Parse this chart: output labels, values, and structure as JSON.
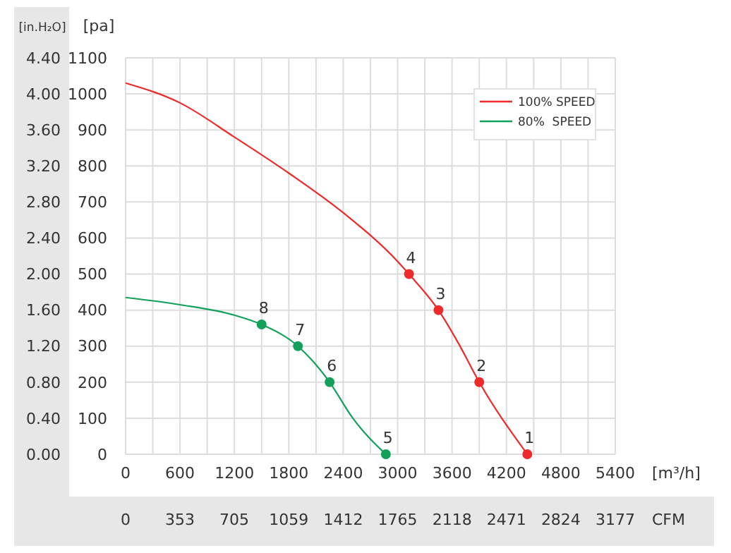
{
  "chart_data": {
    "type": "line",
    "xlabel": "[m³/h]",
    "ylabel": "[pa]",
    "y2label": "[in.H₂O]",
    "x2label": "CFM",
    "xlim": [
      0,
      5400
    ],
    "xticks": [
      0,
      {
        "value": 300,
        "label": null
      },
      600,
      {
        "value": 900,
        "label": null
      },
      1200,
      {
        "value": 1500,
        "label": null
      },
      1800,
      {
        "value": 2100,
        "label": null
      },
      2400,
      {
        "value": 2700,
        "label": null
      },
      3000,
      {
        "value": 3300,
        "label": null
      },
      3600,
      {
        "value": 3900,
        "label": null
      },
      4200,
      {
        "value": 4500,
        "label": null
      },
      4800,
      {
        "value": 5100,
        "label": null
      },
      5400
    ],
    "x2lim": [
      0,
      3177
    ],
    "x2ticks": [
      0,
      353,
      705,
      1059,
      1412,
      1765,
      2118,
      2471,
      2824,
      3177
    ],
    "ylim": [
      0,
      1100
    ],
    "yticks": [
      0,
      100,
      200,
      300,
      400,
      500,
      600,
      700,
      800,
      900,
      1000,
      1100
    ],
    "y2lim": [
      0,
      4.4
    ],
    "y2ticks": [
      {
        "value": 0,
        "label": "0.00"
      },
      {
        "value": 0.4,
        "label": "0.40"
      },
      {
        "value": 0.8,
        "label": "0.80"
      },
      {
        "value": 1.2,
        "label": "1.20"
      },
      {
        "value": 1.6,
        "label": "1.60"
      },
      {
        "value": 2,
        "label": "2.00"
      },
      {
        "value": 2.4,
        "label": "2.40"
      },
      {
        "value": 2.8,
        "label": "2.80"
      },
      {
        "value": 3.2,
        "label": "3.20"
      },
      {
        "value": 3.6,
        "label": "3.60"
      },
      {
        "value": 4,
        "label": "4.00"
      },
      {
        "value": 4.4,
        "label": "4.40"
      }
    ],
    "grid": true,
    "legend": "top right",
    "series": [
      {
        "name": "100% SPEED",
        "marker": "none",
        "color": "#ee2a2a",
        "x": [
          0,
          600,
          1200,
          1800,
          2400,
          3000,
          3125,
          3450,
          3670,
          3900,
          4430
        ],
        "values": [
          1030,
          975,
          880,
          780,
          670,
          535,
          500,
          400,
          308,
          200,
          0
        ]
      },
      {
        "name": "80%  SPEED",
        "marker": "none",
        "color": "#12a05a",
        "x": [
          0,
          600,
          1200,
          1500,
          1900,
          2250,
          2500,
          2870
        ],
        "values": [
          435,
          415,
          386,
          360,
          300,
          200,
          102,
          0
        ]
      },
      {
        "type": "scatter",
        "marker": "circle",
        "color": "#ee2a2a",
        "x": [
          4430,
          3900,
          3450,
          3125
        ],
        "values": [
          0,
          200,
          400,
          500
        ]
      },
      {
        "type": "scatter",
        "marker": "circle",
        "color": "#12a05a",
        "x": [
          2870,
          2250,
          1900,
          1500
        ],
        "values": [
          0,
          200,
          300,
          360
        ]
      }
    ],
    "annotations": [
      {
        "text": "1",
        "x": 4430,
        "y": 0
      },
      {
        "text": "2",
        "x": 3900,
        "y": 200
      },
      {
        "text": "3",
        "x": 3450,
        "y": 400
      },
      {
        "text": "4",
        "x": 3125,
        "y": 500
      },
      {
        "text": "5",
        "x": 2870,
        "y": 0
      },
      {
        "text": "6",
        "x": 2250,
        "y": 200
      },
      {
        "text": "7",
        "x": 1900,
        "y": 300
      },
      {
        "text": "8",
        "x": 1500,
        "y": 360
      }
    ]
  }
}
